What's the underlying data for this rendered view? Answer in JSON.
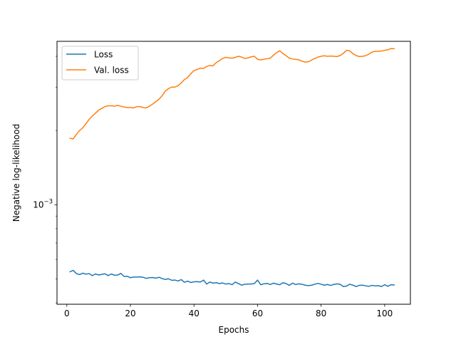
{
  "chart_data": {
    "type": "line",
    "xlabel": "Epochs",
    "ylabel": "Negative log-likelihood",
    "x_ticks": [
      0,
      20,
      40,
      60,
      80,
      100
    ],
    "y_scale": "log",
    "y_major_tick": {
      "value": 0.001,
      "label_base": "10",
      "label_exp": "−3"
    },
    "xlim": [
      -3.1,
      108.1
    ],
    "ylim": [
      0.000395,
      0.0046
    ],
    "grid": false,
    "legend_position": "top-left",
    "series": [
      {
        "name": "Loss",
        "color": "#1f77b4",
        "x": [
          1,
          2,
          3,
          4,
          5,
          6,
          7,
          8,
          9,
          10,
          11,
          12,
          13,
          14,
          15,
          16,
          17,
          18,
          19,
          20,
          21,
          22,
          23,
          24,
          25,
          26,
          27,
          28,
          29,
          30,
          31,
          32,
          33,
          34,
          35,
          36,
          37,
          38,
          39,
          40,
          41,
          42,
          43,
          44,
          45,
          46,
          47,
          48,
          49,
          50,
          51,
          52,
          53,
          54,
          55,
          56,
          57,
          58,
          59,
          60,
          61,
          62,
          63,
          64,
          65,
          66,
          67,
          68,
          69,
          70,
          71,
          72,
          73,
          74,
          75,
          76,
          77,
          78,
          79,
          80,
          81,
          82,
          83,
          84,
          85,
          86,
          87,
          88,
          89,
          90,
          91,
          92,
          93,
          94,
          95,
          96,
          97,
          98,
          99,
          100,
          101,
          102,
          103
        ],
        "values": [
          0.000535,
          0.000542,
          0.000526,
          0.000521,
          0.000528,
          0.000523,
          0.000526,
          0.000516,
          0.000524,
          0.000519,
          0.000522,
          0.000525,
          0.000516,
          0.000524,
          0.000518,
          0.000519,
          0.000527,
          0.000512,
          0.000513,
          0.000506,
          0.000509,
          0.000509,
          0.00051,
          0.000508,
          0.000503,
          0.000506,
          0.000507,
          0.000504,
          0.000508,
          0.000502,
          0.000498,
          0.000501,
          0.000494,
          0.000495,
          0.000491,
          0.000497,
          0.000485,
          0.00049,
          0.000484,
          0.000487,
          0.000488,
          0.000486,
          0.000495,
          0.000477,
          0.000486,
          0.000481,
          0.000483,
          0.000479,
          0.000482,
          0.000477,
          0.000479,
          0.000474,
          0.000486,
          0.000479,
          0.000472,
          0.000476,
          0.000477,
          0.000477,
          0.000479,
          0.000495,
          0.000474,
          0.000478,
          0.00048,
          0.000475,
          0.000481,
          0.000477,
          0.000474,
          0.000483,
          0.000479,
          0.000471,
          0.000481,
          0.000475,
          0.000478,
          0.000476,
          0.000472,
          0.00047,
          0.000472,
          0.000476,
          0.00048,
          0.000476,
          0.000472,
          0.000475,
          0.000471,
          0.000475,
          0.000478,
          0.000476,
          0.000466,
          0.000468,
          0.000476,
          0.000472,
          0.000466,
          0.000471,
          0.000472,
          0.000469,
          0.000467,
          0.000471,
          0.000469,
          0.00047,
          0.000466,
          0.000474,
          0.000467,
          0.000474,
          0.000473
        ]
      },
      {
        "name": "Val. loss",
        "color": "#ff7f0e",
        "x": [
          1,
          2,
          3,
          4,
          5,
          6,
          7,
          8,
          9,
          10,
          11,
          12,
          13,
          14,
          15,
          16,
          17,
          18,
          19,
          20,
          21,
          22,
          23,
          24,
          25,
          26,
          27,
          28,
          29,
          30,
          31,
          32,
          33,
          34,
          35,
          36,
          37,
          38,
          39,
          40,
          41,
          42,
          43,
          44,
          45,
          46,
          47,
          48,
          49,
          50,
          51,
          52,
          53,
          54,
          55,
          56,
          57,
          58,
          59,
          60,
          61,
          62,
          63,
          64,
          65,
          66,
          67,
          68,
          69,
          70,
          71,
          72,
          73,
          74,
          75,
          76,
          77,
          78,
          79,
          80,
          81,
          82,
          83,
          84,
          85,
          86,
          87,
          88,
          89,
          90,
          91,
          92,
          93,
          94,
          95,
          96,
          97,
          98,
          99,
          100,
          101,
          102,
          103
        ],
        "values": [
          0.00186,
          0.00185,
          0.00193,
          0.002,
          0.00205,
          0.00213,
          0.00222,
          0.00229,
          0.00235,
          0.00242,
          0.00246,
          0.0025,
          0.00252,
          0.00252,
          0.00251,
          0.00253,
          0.00251,
          0.00249,
          0.00248,
          0.00248,
          0.00247,
          0.0025,
          0.0025,
          0.00248,
          0.00247,
          0.00251,
          0.00256,
          0.00262,
          0.00268,
          0.00277,
          0.00289,
          0.00296,
          0.003,
          0.003,
          0.00304,
          0.00312,
          0.00322,
          0.00328,
          0.0034,
          0.0035,
          0.00354,
          0.00358,
          0.00357,
          0.00364,
          0.00367,
          0.00366,
          0.00377,
          0.00384,
          0.00392,
          0.00396,
          0.00394,
          0.00393,
          0.00396,
          0.004,
          0.00397,
          0.00392,
          0.00394,
          0.00398,
          0.004,
          0.00389,
          0.00387,
          0.00389,
          0.00391,
          0.00393,
          0.00404,
          0.00414,
          0.00421,
          0.0041,
          0.00402,
          0.00393,
          0.0039,
          0.00389,
          0.00387,
          0.00382,
          0.00379,
          0.0038,
          0.00386,
          0.00392,
          0.00397,
          0.004,
          0.00402,
          0.004,
          0.00401,
          0.004,
          0.00399,
          0.00403,
          0.00411,
          0.00423,
          0.00421,
          0.0041,
          0.00403,
          0.00399,
          0.004,
          0.00402,
          0.00408,
          0.00416,
          0.00419,
          0.00419,
          0.0042,
          0.00423,
          0.00425,
          0.0043,
          0.00429
        ]
      }
    ]
  }
}
